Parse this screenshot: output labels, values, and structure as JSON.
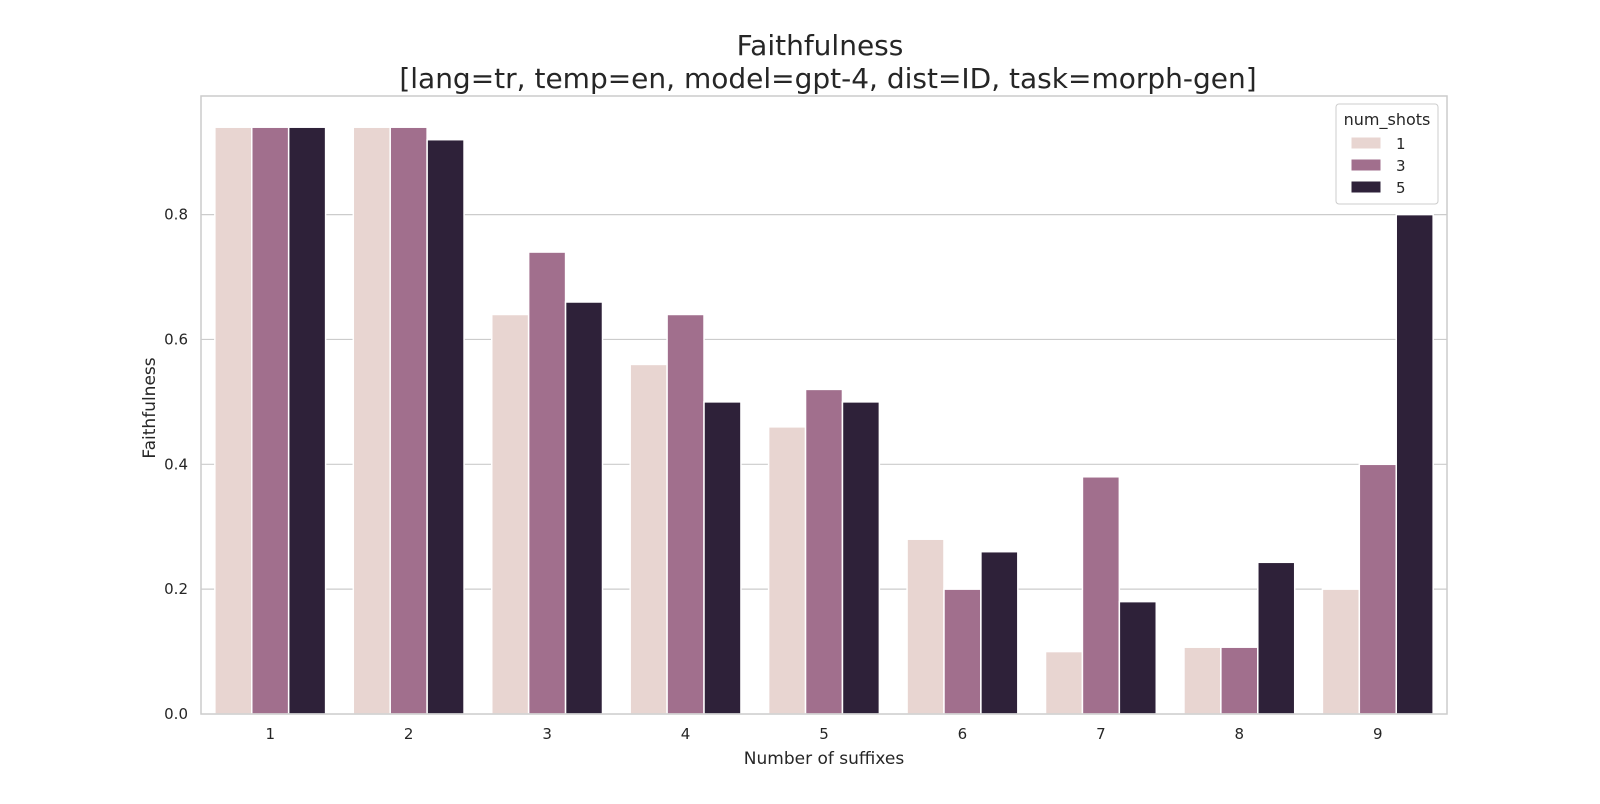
{
  "chart_data": {
    "type": "bar",
    "title": "Faithfulness",
    "subtitle": "[lang=tr, temp=en, model=gpt-4, dist=ID, task=morph-gen]",
    "xlabel": "Number of suffixes",
    "ylabel": "Faithfulness",
    "categories": [
      "1",
      "2",
      "3",
      "4",
      "5",
      "6",
      "7",
      "8",
      "9"
    ],
    "ylim": [
      0,
      0.99
    ],
    "yticks": [
      0.0,
      0.2,
      0.4,
      0.6,
      0.8
    ],
    "ytick_labels": [
      "0.0",
      "0.2",
      "0.4",
      "0.6",
      "0.8"
    ],
    "grid": "horizontal",
    "legend": {
      "title": "num_shots",
      "position": "top-right"
    },
    "series": [
      {
        "name": "1",
        "color": "#e8d5d1",
        "values": [
          0.94,
          0.94,
          0.64,
          0.56,
          0.46,
          0.28,
          0.1,
          0.107,
          0.2
        ]
      },
      {
        "name": "3",
        "color": "#a16f8d",
        "values": [
          0.94,
          0.94,
          0.74,
          0.64,
          0.52,
          0.2,
          0.38,
          0.107,
          0.4
        ]
      },
      {
        "name": "5",
        "color": "#2e2139",
        "values": [
          0.94,
          0.92,
          0.66,
          0.5,
          0.5,
          0.26,
          0.18,
          0.243,
          0.8
        ]
      }
    ]
  }
}
